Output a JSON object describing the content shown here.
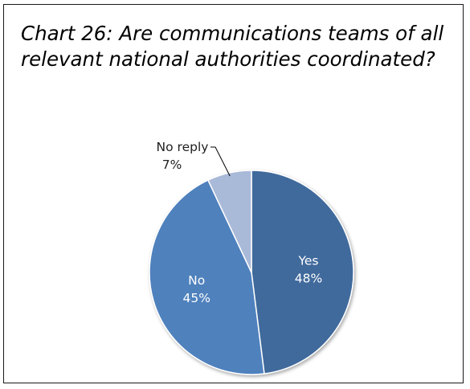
{
  "chart_data": {
    "type": "pie",
    "title": "Chart 26: Are communications teams of all relevant national authorities coordinated?",
    "slices": [
      {
        "label": "Yes",
        "value": 48,
        "value_label": "48%",
        "color": "#416b9c"
      },
      {
        "label": "No",
        "value": 45,
        "value_label": "45%",
        "color": "#4f81bd"
      },
      {
        "label": "No reply",
        "value": 7,
        "value_label": "7%",
        "color": "#a9b9d8"
      }
    ],
    "start_angle_deg": 0,
    "direction": "clockwise",
    "label_color_inside": "#ffffff",
    "label_color_outside": "#1f1f1f",
    "legend": "none"
  }
}
